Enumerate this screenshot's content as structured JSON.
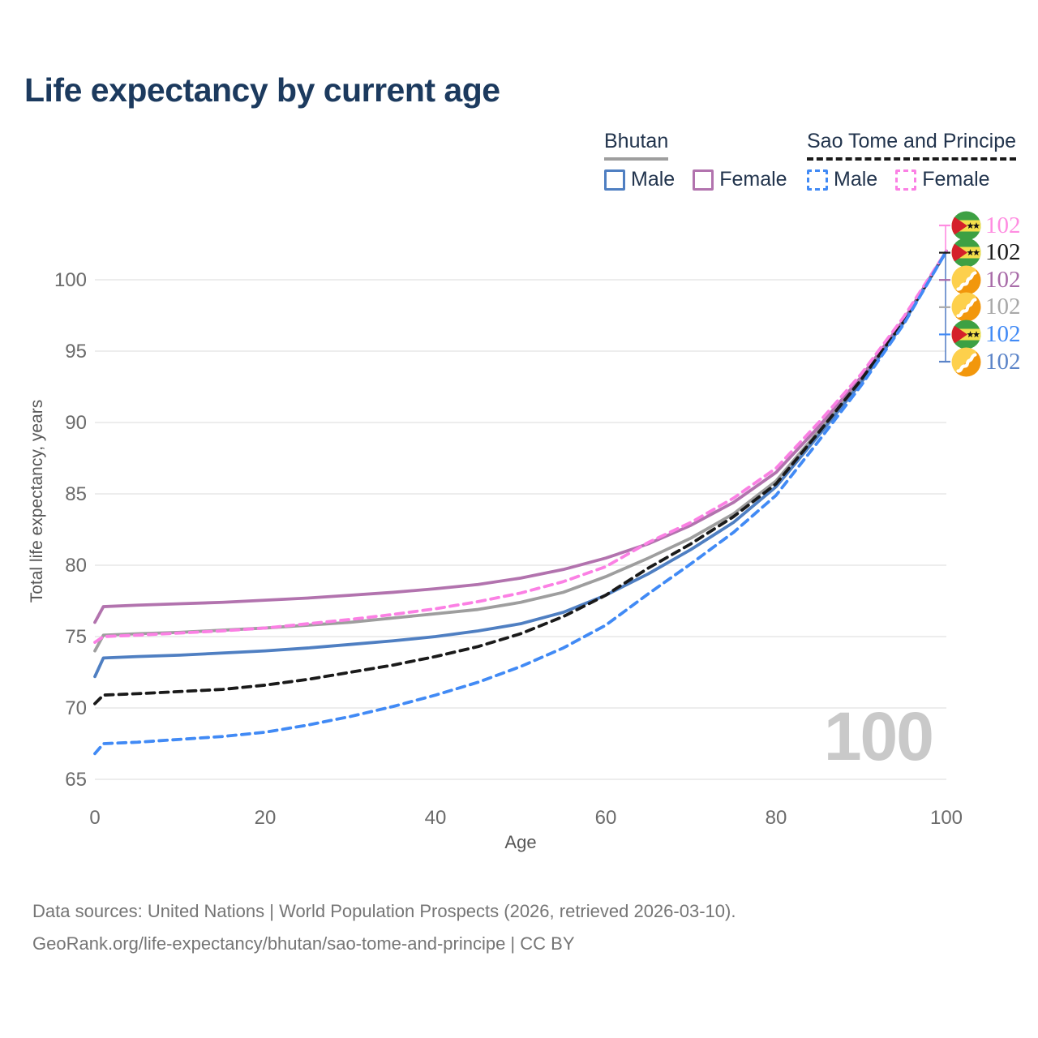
{
  "header": {
    "title": "Life expectancy by current age"
  },
  "legend": {
    "groups": [
      {
        "label": "Bhutan",
        "line_style": "solid",
        "underline_color": "#9e9e9e",
        "items": [
          {
            "label": "Male",
            "color": "#4f7fc2",
            "dash": false
          },
          {
            "label": "Female",
            "color": "#b273ae",
            "dash": false
          }
        ]
      },
      {
        "label": "Sao Tome and Principe",
        "line_style": "dashed",
        "underline_color": "#1a1a1a",
        "items": [
          {
            "label": "Male",
            "color": "#418af5",
            "dash": true
          },
          {
            "label": "Female",
            "color": "#fb80e4",
            "dash": true
          }
        ]
      }
    ]
  },
  "chart_data": {
    "type": "line",
    "title": "Life expectancy by current age",
    "xlabel": "Age",
    "ylabel": "Total life expectancy, years",
    "watermark": "100",
    "x_ticks": [
      0,
      20,
      40,
      60,
      80,
      100
    ],
    "y_ticks": [
      65,
      70,
      75,
      80,
      85,
      90,
      95,
      100
    ],
    "xlim": [
      0,
      100
    ],
    "ylim": [
      65,
      103
    ],
    "grid": "horizontal",
    "legend_position": "top-right",
    "x": [
      0,
      1,
      5,
      10,
      15,
      20,
      25,
      30,
      35,
      40,
      45,
      50,
      55,
      60,
      65,
      70,
      75,
      80,
      85,
      90,
      95,
      100
    ],
    "series": [
      {
        "name": "Bhutan Total",
        "country": "Bhutan",
        "sex": "Both",
        "color": "#9e9e9e",
        "dash": false,
        "values": [
          74.0,
          75.1,
          75.2,
          75.3,
          75.45,
          75.6,
          75.8,
          76.0,
          76.3,
          76.6,
          76.9,
          77.4,
          78.1,
          79.2,
          80.5,
          81.9,
          83.6,
          85.9,
          89.4,
          93.0,
          97.1,
          102
        ]
      },
      {
        "name": "Bhutan Female",
        "country": "Bhutan",
        "sex": "Female",
        "color": "#b273ae",
        "dash": false,
        "values": [
          76.0,
          77.1,
          77.2,
          77.3,
          77.4,
          77.55,
          77.7,
          77.9,
          78.1,
          78.35,
          78.65,
          79.1,
          79.7,
          80.5,
          81.5,
          82.8,
          84.4,
          86.5,
          89.7,
          93.2,
          97.2,
          102
        ]
      },
      {
        "name": "Bhutan Male",
        "country": "Bhutan",
        "sex": "Male",
        "color": "#4f7fc2",
        "dash": false,
        "values": [
          72.2,
          73.5,
          73.6,
          73.7,
          73.85,
          74.0,
          74.2,
          74.45,
          74.7,
          75.0,
          75.4,
          75.9,
          76.7,
          77.9,
          79.4,
          81.1,
          83.0,
          85.5,
          89.1,
          92.8,
          97.0,
          102
        ]
      },
      {
        "name": "Sao Tome and Principe Total",
        "country": "Sao Tome and Principe",
        "sex": "Both",
        "color": "#1a1a1a",
        "dash": true,
        "values": [
          70.3,
          70.9,
          71.0,
          71.15,
          71.3,
          71.6,
          72.0,
          72.5,
          73.0,
          73.6,
          74.3,
          75.2,
          76.4,
          77.9,
          79.8,
          81.5,
          83.4,
          85.7,
          89.3,
          93.0,
          97.1,
          102
        ]
      },
      {
        "name": "Sao Tome and Principe Female",
        "country": "Sao Tome and Principe",
        "sex": "Female",
        "color": "#fb80e4",
        "dash": true,
        "values": [
          74.6,
          75.0,
          75.1,
          75.25,
          75.4,
          75.6,
          75.9,
          76.2,
          76.55,
          76.95,
          77.45,
          78.05,
          78.85,
          79.9,
          81.6,
          83.0,
          84.7,
          86.8,
          90.0,
          93.4,
          97.4,
          102
        ]
      },
      {
        "name": "Sao Tome and Principe Male",
        "country": "Sao Tome and Principe",
        "sex": "Male",
        "color": "#418af5",
        "dash": true,
        "values": [
          66.8,
          67.5,
          67.6,
          67.8,
          68.0,
          68.3,
          68.8,
          69.4,
          70.1,
          70.9,
          71.8,
          72.9,
          74.2,
          75.8,
          78.0,
          80.1,
          82.3,
          84.9,
          88.7,
          92.6,
          96.9,
          102
        ]
      }
    ]
  },
  "end_labels": {
    "rows": [
      {
        "series": "Sao Tome and Principe Female",
        "flag": "sao-tome-and-principe",
        "value": "102",
        "color": "#ff8ce1"
      },
      {
        "series": "Sao Tome and Principe Total",
        "flag": "sao-tome-and-principe",
        "value": "102",
        "color": "#1a1a1a"
      },
      {
        "series": "Bhutan Female",
        "flag": "bhutan",
        "value": "102",
        "color": "#a86ba8"
      },
      {
        "series": "Bhutan Total",
        "flag": "bhutan",
        "value": "102",
        "color": "#a8a8a8"
      },
      {
        "series": "Sao Tome and Principe Male",
        "flag": "sao-tome-and-principe",
        "value": "102",
        "color": "#418af5"
      },
      {
        "series": "Bhutan Male",
        "flag": "bhutan",
        "value": "102",
        "color": "#5b84c8"
      }
    ]
  },
  "footer": {
    "line1": "Data sources: United Nations | World Population Prospects (2026, retrieved 2026-03-10).",
    "line2": "GeoRank.org/life-expectancy/bhutan/sao-tome-and-principe | CC BY"
  }
}
